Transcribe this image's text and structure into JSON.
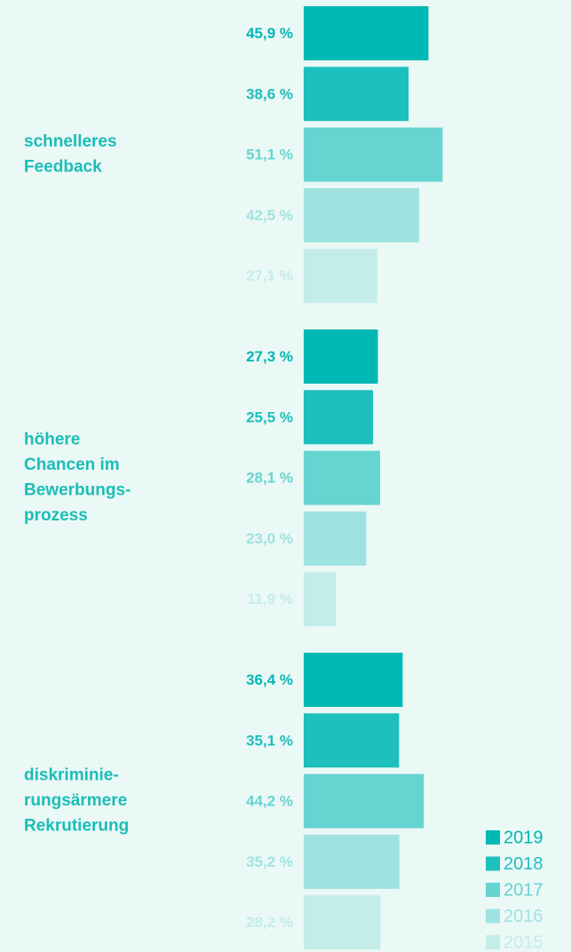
{
  "chart_data": {
    "type": "bar",
    "orientation": "horizontal",
    "categories": [
      [
        "schnelleres",
        "Feedback"
      ],
      [
        "höhere",
        "Chancen im",
        "Bewerbungs-",
        "prozess"
      ],
      [
        "diskriminie-",
        "rungsärmere",
        "Rekrutierung"
      ]
    ],
    "series": [
      {
        "name": "2019",
        "color": "#00b8b4",
        "values": [
          45.9,
          27.3,
          36.4
        ],
        "value_labels": [
          "45,9 %",
          "27,3 %",
          "36,4 %"
        ]
      },
      {
        "name": "2018",
        "color": "#1dc0bc",
        "values": [
          38.6,
          25.5,
          35.1
        ],
        "value_labels": [
          "38,6 %",
          "25,5 %",
          "35,1 %"
        ]
      },
      {
        "name": "2017",
        "color": "#66d4d0",
        "values": [
          51.1,
          28.1,
          44.2
        ],
        "value_labels": [
          "51,1 %",
          "28,1 %",
          "44,2 %"
        ]
      },
      {
        "name": "2016",
        "color": "#9fe3e0",
        "values": [
          42.5,
          23.0,
          35.2
        ],
        "value_labels": [
          "42,5 %",
          "23,0 %",
          "35,2 %"
        ]
      },
      {
        "name": "2015",
        "color": "#c4ede9",
        "values": [
          27.1,
          11.9,
          28.2
        ],
        "value_labels": [
          "27,1 %",
          "11,9 %",
          "28,2 %"
        ]
      }
    ],
    "legend": "bottom-right",
    "label_color": "#1bbdb7"
  }
}
